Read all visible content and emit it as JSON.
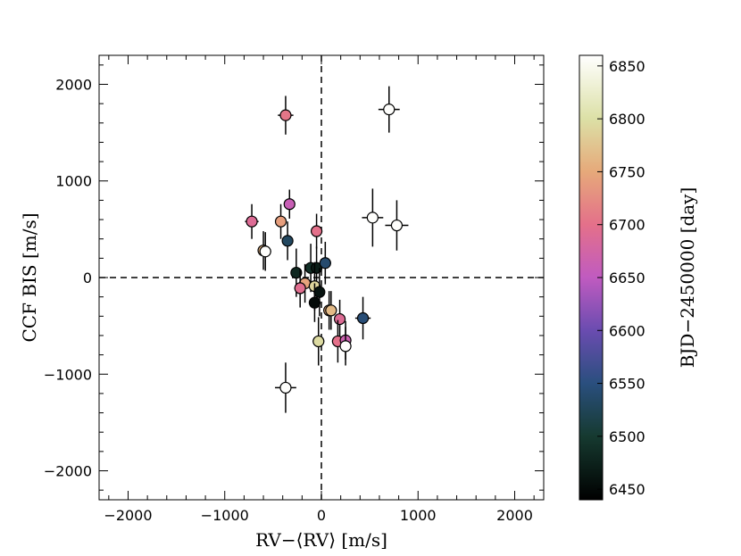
{
  "chart_data": {
    "type": "scatter",
    "xlabel": "RV−⟨RV⟩ [m/s]",
    "ylabel": "CCF BIS [m/s]",
    "xlim": [
      -2300,
      2300
    ],
    "ylim": [
      -2300,
      2300
    ],
    "x_ticks": [
      -2000,
      -1000,
      0,
      1000,
      2000
    ],
    "x_tick_labels": [
      "−2000",
      "−1000",
      "0",
      "1000",
      "2000"
    ],
    "y_ticks": [
      -2000,
      -1000,
      0,
      1000,
      2000
    ],
    "y_tick_labels": [
      "−2000",
      "−1000",
      "0",
      "1000",
      "2000"
    ],
    "reference_lines": {
      "x": 0,
      "y": 0,
      "style": "dashed"
    },
    "colorbar": {
      "label": "BJD−2450000 [day]",
      "range": [
        6440,
        6860
      ],
      "ticks": [
        6450,
        6500,
        6550,
        6600,
        6650,
        6700,
        6750,
        6800,
        6850
      ],
      "tick_labels": [
        "6450",
        "6500",
        "6550",
        "6600",
        "6650",
        "6700",
        "6750",
        "6800",
        "6850"
      ],
      "stops": [
        {
          "v": 6440,
          "c": "#000000"
        },
        {
          "v": 6500,
          "c": "#163a30"
        },
        {
          "v": 6550,
          "c": "#2a4f7e"
        },
        {
          "v": 6600,
          "c": "#6a4cb0"
        },
        {
          "v": 6650,
          "c": "#c05bc0"
        },
        {
          "v": 6700,
          "c": "#e4708a"
        },
        {
          "v": 6750,
          "c": "#e6a97a"
        },
        {
          "v": 6800,
          "c": "#dce0a6"
        },
        {
          "v": 6860,
          "c": "#ffffff"
        }
      ]
    },
    "points": [
      {
        "x": -370,
        "y": 1680,
        "xerr": 80,
        "yerr": 200,
        "t": 6705
      },
      {
        "x": 700,
        "y": 1740,
        "xerr": 110,
        "yerr": 240,
        "t": 6858
      },
      {
        "x": -330,
        "y": 760,
        "xerr": 50,
        "yerr": 150,
        "t": 6660
      },
      {
        "x": -720,
        "y": 580,
        "xerr": 70,
        "yerr": 180,
        "t": 6690
      },
      {
        "x": -420,
        "y": 580,
        "xerr": 60,
        "yerr": 180,
        "t": 6740
      },
      {
        "x": -50,
        "y": 480,
        "xerr": 60,
        "yerr": 180,
        "t": 6700
      },
      {
        "x": 530,
        "y": 620,
        "xerr": 110,
        "yerr": 300,
        "t": 6858
      },
      {
        "x": 780,
        "y": 540,
        "xerr": 120,
        "yerr": 260,
        "t": 6858
      },
      {
        "x": -350,
        "y": 380,
        "xerr": 50,
        "yerr": 200,
        "t": 6530
      },
      {
        "x": -600,
        "y": 280,
        "xerr": 60,
        "yerr": 200,
        "t": 6760
      },
      {
        "x": -580,
        "y": 270,
        "xerr": 60,
        "yerr": 200,
        "t": 6858
      },
      {
        "x": -260,
        "y": 50,
        "xerr": 50,
        "yerr": 250,
        "t": 6480
      },
      {
        "x": -110,
        "y": 100,
        "xerr": 60,
        "yerr": 250,
        "t": 6490
      },
      {
        "x": -50,
        "y": 100,
        "xerr": 60,
        "yerr": 220,
        "t": 6470
      },
      {
        "x": 40,
        "y": 150,
        "xerr": 60,
        "yerr": 220,
        "t": 6540
      },
      {
        "x": -170,
        "y": -60,
        "xerr": 60,
        "yerr": 200,
        "t": 6745
      },
      {
        "x": -220,
        "y": -110,
        "xerr": 60,
        "yerr": 200,
        "t": 6695
      },
      {
        "x": -70,
        "y": -90,
        "xerr": 60,
        "yerr": 250,
        "t": 6790
      },
      {
        "x": -20,
        "y": -150,
        "xerr": 50,
        "yerr": 250,
        "t": 6460
      },
      {
        "x": -70,
        "y": -260,
        "xerr": 50,
        "yerr": 200,
        "t": 6450
      },
      {
        "x": 80,
        "y": -340,
        "xerr": 60,
        "yerr": 200,
        "t": 6752
      },
      {
        "x": 100,
        "y": -340,
        "xerr": 60,
        "yerr": 200,
        "t": 6765
      },
      {
        "x": 190,
        "y": -430,
        "xerr": 60,
        "yerr": 200,
        "t": 6690
      },
      {
        "x": 430,
        "y": -420,
        "xerr": 80,
        "yerr": 220,
        "t": 6545
      },
      {
        "x": -30,
        "y": -660,
        "xerr": 60,
        "yerr": 250,
        "t": 6795
      },
      {
        "x": 170,
        "y": -660,
        "xerr": 60,
        "yerr": 220,
        "t": 6700
      },
      {
        "x": 250,
        "y": -650,
        "xerr": 60,
        "yerr": 200,
        "t": 6665
      },
      {
        "x": 250,
        "y": -710,
        "xerr": 60,
        "yerr": 200,
        "t": 6858
      },
      {
        "x": -370,
        "y": -1140,
        "xerr": 110,
        "yerr": 260,
        "t": 6858
      }
    ]
  }
}
